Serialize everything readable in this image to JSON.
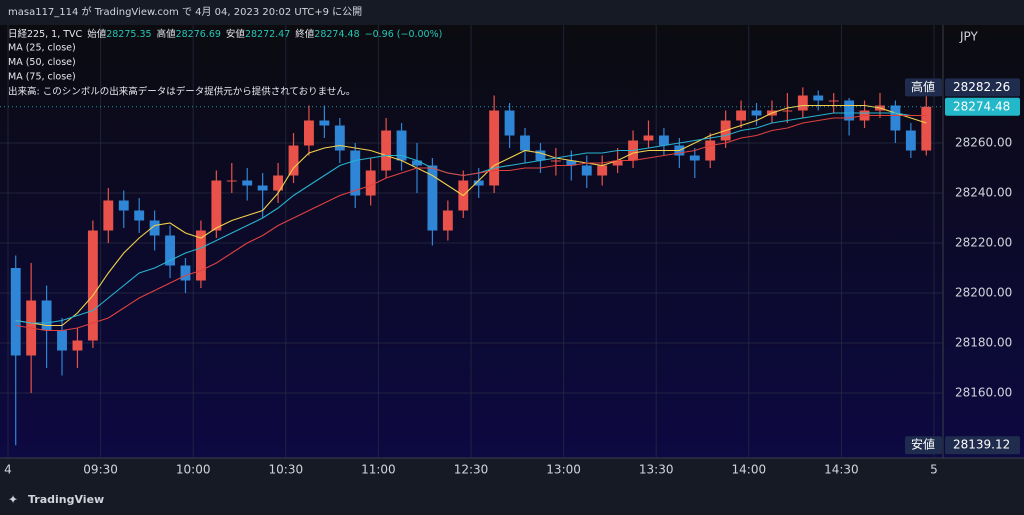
{
  "header": {
    "publisher": "masa117_114 が TradingView.com で 4月 04, 2023 20:02 UTC+9 に公開"
  },
  "footer": {
    "brand": "TradingView"
  },
  "chart_data": {
    "type": "candlestick",
    "title": "日経225, 1, TVC",
    "ohlc_legend": [
      {
        "label": "始値",
        "value": 28275.35
      },
      {
        "label": "高値",
        "value": 28276.69
      },
      {
        "label": "安値",
        "value": 28272.47
      },
      {
        "label": "終値",
        "value": 28274.48
      }
    ],
    "change": "−0.96 (−0.00%)",
    "volume_note": "出来高: このシンボルの出来高データはデータ提供元から提供されておりません。",
    "currency": "JPY",
    "up_color": "#e8524a",
    "down_color": "#2f86d6",
    "ohlc": [
      [
        28210,
        28215,
        28139.12,
        28175
      ],
      [
        28175,
        28212,
        28160,
        28197
      ],
      [
        28197,
        28203,
        28170,
        28185
      ],
      [
        28185,
        28190,
        28167,
        28177
      ],
      [
        28177,
        28186,
        28170,
        28181
      ],
      [
        28181,
        28229,
        28178,
        28225
      ],
      [
        28225,
        28242,
        28220,
        28237
      ],
      [
        28237,
        28241,
        28226,
        28233
      ],
      [
        28233,
        28238,
        28224,
        28229
      ],
      [
        28229,
        28233,
        28217,
        28223
      ],
      [
        28223,
        28227,
        28206,
        28211
      ],
      [
        28211,
        28214,
        28200,
        28205
      ],
      [
        28205,
        28229,
        28202,
        28225
      ],
      [
        28225,
        28249,
        28222,
        28245
      ],
      [
        28245,
        28252,
        28240,
        28245
      ],
      [
        28245,
        28250,
        28237,
        28243
      ],
      [
        28243,
        28248,
        28230,
        28241
      ],
      [
        28241,
        28252,
        28236,
        28247
      ],
      [
        28247,
        28264,
        28244,
        28259
      ],
      [
        28259,
        28275,
        28255,
        28269
      ],
      [
        28269,
        28275,
        28262,
        28267
      ],
      [
        28267,
        28270,
        28252,
        28257
      ],
      [
        28257,
        28260,
        28234,
        28239
      ],
      [
        28239,
        28254,
        28235,
        28249
      ],
      [
        28249,
        28270,
        28246,
        28265
      ],
      [
        28265,
        28268,
        28249,
        28253
      ],
      [
        28253,
        28260,
        28240,
        28251
      ],
      [
        28251,
        28254,
        28219,
        28225
      ],
      [
        28225,
        28237,
        28221,
        28233
      ],
      [
        28233,
        28249,
        28230,
        28245
      ],
      [
        28245,
        28250,
        28238,
        28243
      ],
      [
        28243,
        28279,
        28240,
        28273
      ],
      [
        28273,
        28276,
        28258,
        28263
      ],
      [
        28263,
        28266,
        28252,
        28257
      ],
      [
        28257,
        28260,
        28248,
        28253
      ],
      [
        28253,
        28258,
        28247,
        28253
      ],
      [
        28253,
        28257,
        28245,
        28251
      ],
      [
        28251,
        28255,
        28242,
        28247
      ],
      [
        28247,
        28255,
        28243,
        28251
      ],
      [
        28251,
        28258,
        28248,
        28253
      ],
      [
        28253,
        28265,
        28250,
        28261
      ],
      [
        28261,
        28269,
        28258,
        28263
      ],
      [
        28263,
        28266,
        28255,
        28259
      ],
      [
        28259,
        28262,
        28250,
        28255
      ],
      [
        28255,
        28258,
        28246,
        28253
      ],
      [
        28253,
        28264,
        28250,
        28261
      ],
      [
        28261,
        28273,
        28258,
        28269
      ],
      [
        28269,
        28277,
        28266,
        28273
      ],
      [
        28273,
        28276,
        28267,
        28271
      ],
      [
        28271,
        28277,
        28268,
        28273
      ],
      [
        28273,
        28280,
        28268,
        28273
      ],
      [
        28273,
        28282.26,
        28270,
        28279
      ],
      [
        28279,
        28281,
        28273,
        28277
      ],
      [
        28277,
        28280,
        28272,
        28277
      ],
      [
        28277,
        28278,
        28263,
        28269
      ],
      [
        28269,
        28277,
        28266,
        28273
      ],
      [
        28273,
        28280,
        28270,
        28275
      ],
      [
        28275,
        28277,
        28260,
        28265
      ],
      [
        28265,
        28268,
        28254,
        28257
      ],
      [
        28257,
        28280,
        28255,
        28274.48
      ]
    ],
    "series": [
      {
        "name": "MA (25, close)",
        "color": "#f2d04b",
        "values": [
          28189,
          28188,
          28187,
          28187,
          28192,
          28199,
          28208,
          28216,
          28222,
          28227,
          28228,
          28224,
          28222,
          28226,
          28229,
          28231,
          28233,
          28240,
          28250,
          28256,
          28258,
          28259,
          28258,
          28257,
          28255,
          28253,
          28250,
          28247,
          28243,
          28239,
          28245,
          28251,
          28254,
          28257,
          28256,
          28254,
          28253,
          28252,
          28251,
          28253,
          28256,
          28257,
          28257,
          28257,
          28260,
          28263,
          28265,
          28267,
          28269,
          28272,
          28274,
          28275,
          28275,
          28275,
          28275,
          28275,
          28274,
          28272,
          28270,
          28268
        ]
      },
      {
        "name": "MA (50, close)",
        "color": "#27b3cf",
        "values": [
          28189,
          28188,
          28188,
          28189,
          28191,
          28193,
          28198,
          28203,
          28208,
          28210,
          28213,
          28216,
          28218,
          28221,
          28224,
          28227,
          28230,
          28234,
          28239,
          28243,
          28247,
          28251,
          28253,
          28254,
          28255,
          28255,
          28253,
          28250,
          28248,
          28247,
          28248,
          28250,
          28251,
          28252,
          28253,
          28254,
          28255,
          28256,
          28256,
          28257,
          28257,
          28258,
          28259,
          28260,
          28261,
          28262,
          28263,
          28265,
          28266,
          28268,
          28269,
          28270,
          28271,
          28272,
          28272,
          28272,
          28272,
          28272,
          28271,
          28271
        ]
      },
      {
        "name": "MA (75, close)",
        "color": "#e0413f",
        "values": [
          28187,
          28186,
          28185,
          28185,
          28186,
          28188,
          28190,
          28194,
          28198,
          28201,
          28204,
          28207,
          28209,
          28212,
          28216,
          28220,
          28223,
          28227,
          28230,
          28233,
          28236,
          28239,
          28241,
          28243,
          28246,
          28248,
          28250,
          28250,
          28248,
          28247,
          28248,
          28249,
          28249,
          28250,
          28250,
          28251,
          28251,
          28252,
          28252,
          28253,
          28253,
          28254,
          28255,
          28256,
          28257,
          28259,
          28260,
          28262,
          28263,
          28265,
          28266,
          28268,
          28269,
          28270,
          28270,
          28271,
          28271,
          28271,
          28271,
          28271
        ]
      }
    ],
    "ylim": [
      28135,
      28307
    ],
    "yticks": [
      {
        "value": 28160,
        "label": "28160.00"
      },
      {
        "value": 28180,
        "label": "28180.00"
      },
      {
        "value": 28200,
        "label": "28200.00"
      },
      {
        "value": 28220,
        "label": "28220.00"
      },
      {
        "value": 28240,
        "label": "28240.00"
      },
      {
        "value": 28260,
        "label": "28260.00"
      }
    ],
    "xlim": [
      0,
      300
    ],
    "xticks": [
      {
        "value": 0,
        "label": "4"
      },
      {
        "value": 30,
        "label": "09:30"
      },
      {
        "value": 60,
        "label": "10:00"
      },
      {
        "value": 90,
        "label": "10:30"
      },
      {
        "value": 120,
        "label": "11:00"
      },
      {
        "value": 150,
        "label": "12:30"
      },
      {
        "value": 180,
        "label": "13:00"
      },
      {
        "value": 210,
        "label": "13:30"
      },
      {
        "value": 240,
        "label": "14:00"
      },
      {
        "value": 270,
        "label": "14:30"
      },
      {
        "value": 300,
        "label": "5"
      }
    ],
    "grid": true,
    "price_labels": [
      {
        "label": "高値",
        "value": 28282.26
      },
      {
        "value": 28274.48,
        "color": "#22b7c9"
      },
      {
        "label": "安値",
        "value": 28139.12
      }
    ]
  }
}
